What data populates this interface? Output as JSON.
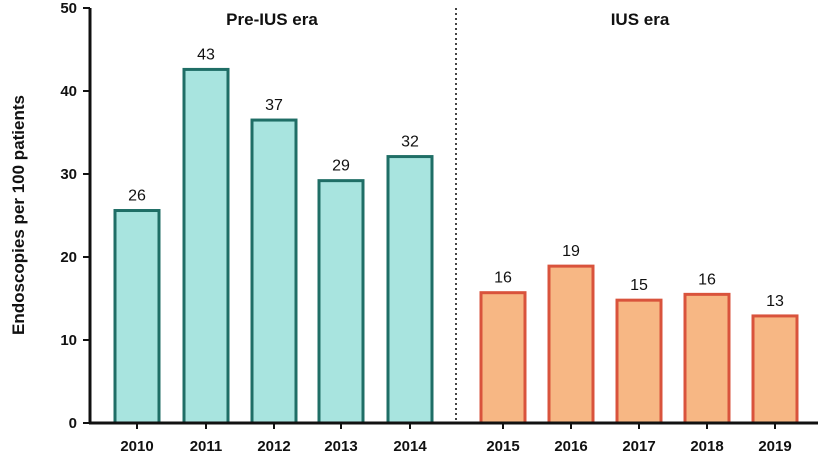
{
  "chart_data": {
    "type": "bar",
    "title": "",
    "xlabel": "",
    "ylabel": "Endoscopies per 100 patients",
    "ylim": [
      0,
      50
    ],
    "yticks": [
      "0",
      "10",
      "20",
      "30",
      "40",
      "50"
    ],
    "grid": false,
    "categories": [
      "2010",
      "2011",
      "2012",
      "2013",
      "2014",
      "2015",
      "2016",
      "2017",
      "2018",
      "2019"
    ],
    "values": [
      25.6,
      42.6,
      36.5,
      29.2,
      32.1,
      15.7,
      18.9,
      14.8,
      15.5,
      12.9
    ],
    "data_labels": [
      "26",
      "43",
      "37",
      "29",
      "32",
      "16",
      "19",
      "15",
      "16",
      "13"
    ],
    "groups": [
      {
        "name": "Pre-IUS era",
        "categories": [
          "2010",
          "2011",
          "2012",
          "2013",
          "2014"
        ],
        "fill": "#a8e4df",
        "stroke": "#1f6e66"
      },
      {
        "name": "IUS era",
        "categories": [
          "2015",
          "2016",
          "2017",
          "2018",
          "2019"
        ],
        "fill": "#f7b784",
        "stroke": "#d9533c"
      }
    ],
    "divider": "dotted line between 2014 and 2015"
  }
}
